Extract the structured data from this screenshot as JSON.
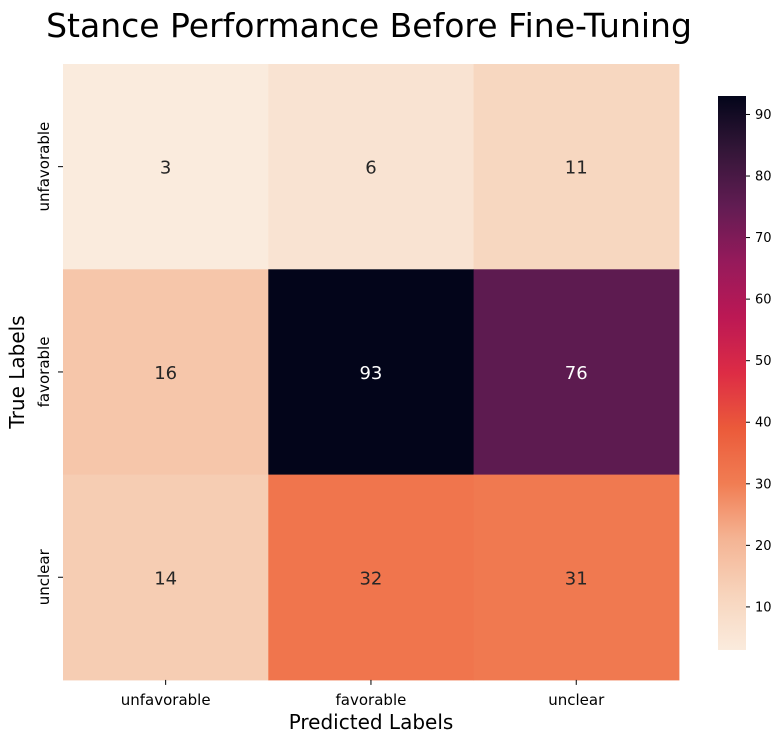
{
  "chart_data": {
    "type": "heatmap",
    "title": "Stance Performance Before Fine-Tuning",
    "xlabel": "Predicted Labels",
    "ylabel": "True Labels",
    "x_categories": [
      "unfavorable",
      "favorable",
      "unclear"
    ],
    "y_categories": [
      "unfavorable",
      "favorable",
      "unclear"
    ],
    "values": [
      [
        3,
        6,
        11
      ],
      [
        16,
        93,
        76
      ],
      [
        14,
        32,
        31
      ]
    ],
    "colorbar": {
      "min": 3,
      "max": 93,
      "ticks": [
        10,
        20,
        30,
        40,
        50,
        60,
        70,
        80,
        90
      ],
      "colormap": "rocket_r"
    },
    "grid": false
  }
}
